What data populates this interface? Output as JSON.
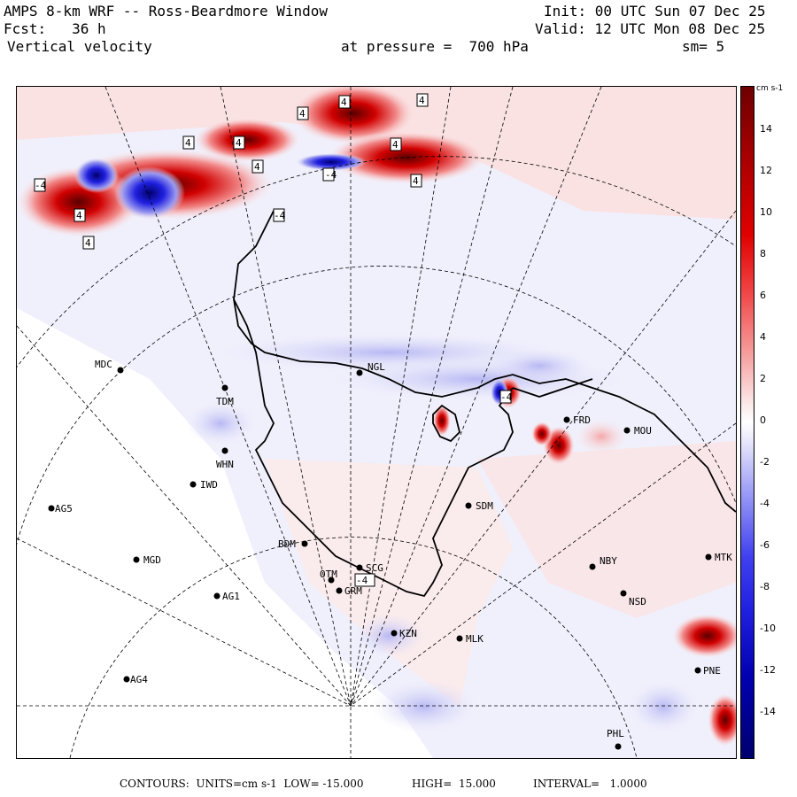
{
  "header": {
    "title": "AMPS 8-km WRF -- Ross-Beardmore Window",
    "forecast": "Fcst:   36 h",
    "field": "Vertical velocity",
    "pressure": "at pressure =  700 hPa",
    "init": "Init: 00 UTC Sun 07 Dec 25",
    "valid": "Valid: 12 UTC Mon 08 Dec 25",
    "smoothing": "sm= 5"
  },
  "colorbar": {
    "units": "cm s-1",
    "ticks": [
      "14",
      "12",
      "10",
      "8",
      "6",
      "4",
      "2",
      "0",
      "-2",
      "-4",
      "-6",
      "-8",
      "-10",
      "-12",
      "-14"
    ],
    "colors": {
      "darkred": "#6e0000",
      "red": "#e00000",
      "pink": "#f6b8b8",
      "lightpink": "#fbe6e6",
      "white": "#ffffff",
      "lightblue": "#e6e6fb",
      "blue": "#2020e0",
      "darkblue": "#00006e"
    }
  },
  "stations": [
    {
      "code": "MDC"
    },
    {
      "code": "TDM"
    },
    {
      "code": "NGL"
    },
    {
      "code": "WHN"
    },
    {
      "code": "IWD"
    },
    {
      "code": "AG5"
    },
    {
      "code": "MGD"
    },
    {
      "code": "BDM"
    },
    {
      "code": "AG1"
    },
    {
      "code": "AG4"
    },
    {
      "code": "SDM"
    },
    {
      "code": "NBY"
    },
    {
      "code": "MTK"
    },
    {
      "code": "NSD"
    },
    {
      "code": "PNE"
    },
    {
      "code": "PHL"
    },
    {
      "code": "MOU"
    },
    {
      "code": "FRD"
    },
    {
      "code": "MLK"
    },
    {
      "code": "KZN"
    },
    {
      "code": "OTM"
    },
    {
      "code": "SCG"
    },
    {
      "code": "GRM"
    }
  ],
  "extrema_labels": [
    "4",
    "4",
    "4",
    "4",
    "4",
    "4",
    "4",
    "4",
    "4",
    "4",
    "-4",
    "-4",
    "-4",
    "-4",
    "-4"
  ],
  "footer": {
    "contours": "CONTOURS:  UNITS=cm s-1  LOW= -15.000",
    "high": "HIGH=  15.000",
    "interval": "INTERVAL=   1.0000"
  }
}
